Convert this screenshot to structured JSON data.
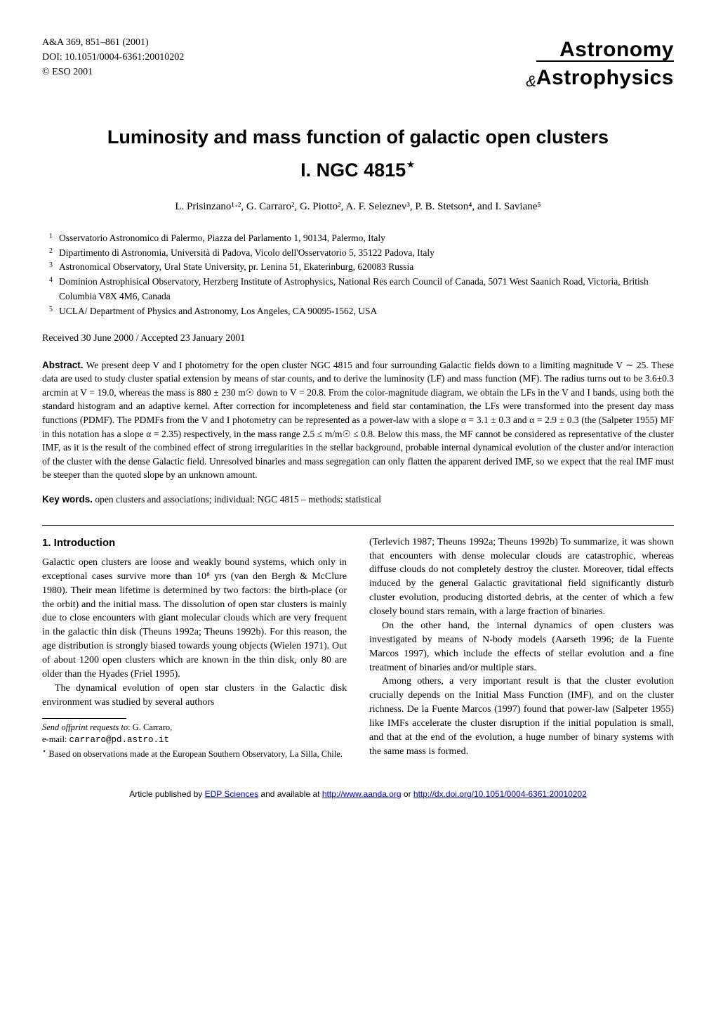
{
  "journal": {
    "citation": "A&A 369, 851–861 (2001)",
    "doi": "DOI: 10.1051/0004-6361:20010202",
    "copyright": "© ESO 2001"
  },
  "logo": {
    "line1": "Astronomy",
    "amp": "&",
    "line2": "Astrophysics"
  },
  "title": {
    "line1": "Luminosity and mass function of galactic open clusters",
    "line2": "I. NGC 4815",
    "star": "⋆"
  },
  "authors": "L. Prisinzano¹·², G. Carraro², G. Piotto², A. F. Seleznev³, P. B. Stetson⁴, and I. Saviane⁵",
  "affiliations": [
    {
      "num": "1",
      "text": "Osservatorio Astronomico di Palermo, Piazza del Parlamento 1, 90134, Palermo, Italy"
    },
    {
      "num": "2",
      "text": "Dipartimento di Astronomia, Università di Padova, Vicolo dell'Osservatorio 5, 35122 Padova, Italy"
    },
    {
      "num": "3",
      "text": "Astronomical Observatory, Ural State University, pr. Lenina 51, Ekaterinburg, 620083 Russia"
    },
    {
      "num": "4",
      "text": "Dominion Astrophisical Observatory, Herzberg Institute of Astrophysics, National Res earch Council of Canada, 5071 West Saanich Road, Victoria, British Columbia V8X 4M6, Canada"
    },
    {
      "num": "5",
      "text": "UCLA/ Department of Physics and Astronomy, Los Angeles, CA 90095-1562, USA"
    }
  ],
  "received": "Received 30 June 2000 / Accepted 23 January 2001",
  "abstract": {
    "label": "Abstract.",
    "text": "We present deep V and I photometry for the open cluster NGC 4815 and four surrounding Galactic fields down to a limiting magnitude V ∼ 25. These data are used to study cluster spatial extension by means of star counts, and to derive the luminosity (LF) and mass function (MF). The radius turns out to be 3.6±0.3 arcmin at V = 19.0, whereas the mass is 880 ± 230 m☉ down to V = 20.8. From the color-magnitude diagram, we obtain the LFs in the V and I bands, using both the standard histogram and an adaptive kernel. After correction for incompleteness and field star contamination, the LFs were transformed into the present day mass functions (PDMF). The PDMFs from the V and I photometry can be represented as a power-law with a slope α = 3.1 ± 0.3 and α = 2.9 ± 0.3 (the (Salpeter 1955) MF in this notation has a slope α = 2.35) respectively, in the mass range 2.5 ≤ m/m☉ ≤ 0.8. Below this mass, the MF cannot be considered as representative of the cluster IMF, as it is the result of the combined effect of strong irregularities in the stellar background, probable internal dynamical evolution of the cluster and/or interaction of the cluster with the dense Galactic field. Unresolved binaries and mass segregation can only flatten the apparent derived IMF, so we expect that the real IMF must be steeper than the quoted slope by an unknown amount."
  },
  "keywords": {
    "label": "Key words.",
    "text": "open clusters and associations; individual: NGC 4815 – methods: statistical"
  },
  "section1": {
    "heading": "1. Introduction",
    "left": {
      "p1": "Galactic open clusters are loose and weakly bound systems, which only in exceptional cases survive more than 10⁸ yrs (van den Bergh & McClure 1980). Their mean lifetime is determined by two factors: the birth-place (or the orbit) and the initial mass. The dissolution of open star clusters is mainly due to close encounters with giant molecular clouds which are very frequent in the galactic thin disk (Theuns 1992a; Theuns 1992b). For this reason, the age distribution is strongly biased towards young objects (Wielen 1971). Out of about 1200 open clusters which are known in the thin disk, only 80 are older than the Hyades (Friel 1995).",
      "p2": "The dynamical evolution of open star clusters in the Galactic disk environment was studied by several authors"
    },
    "right": {
      "p1": "(Terlevich 1987; Theuns 1992a; Theuns 1992b) To summarize, it was shown that encounters with dense molecular clouds are catastrophic, whereas diffuse clouds do not completely destroy the cluster. Moreover, tidal effects induced by the general Galactic gravitational field significantly disturb cluster evolution, producing distorted debris, at the center of which a few closely bound stars remain, with a large fraction of binaries.",
      "p2": "On the other hand, the internal dynamics of open clusters was investigated by means of N-body models (Aarseth 1996; de la Fuente Marcos 1997), which include the effects of stellar evolution and a fine treatment of binaries and/or multiple stars.",
      "p3": "Among others, a very important result is that the cluster evolution crucially depends on the Initial Mass Function (IMF), and on the cluster richness. De la Fuente Marcos (1997) found that power-law (Salpeter 1955) like IMFs accelerate the cluster disruption if the initial population is small, and that at the end of the evolution, a huge number of binary systems with the same mass is formed."
    }
  },
  "footnotes": {
    "send": "Send offprint requests to",
    "send_to": ": G. Carraro,",
    "email_label": "e-mail: ",
    "email": "carraro@pd.astro.it",
    "star": "⋆",
    "star_text": "Based on observations made at the European Southern Observatory, La Silla, Chile."
  },
  "footer": {
    "text_pre": "Article published by ",
    "link1": "EDP Sciences",
    "text_mid": " and available at ",
    "link2": "http://www.aanda.org",
    "text_or": " or ",
    "link3": "http://dx.doi.org/10.1051/0004-6361:20010202"
  },
  "style": {
    "background": "#ffffff",
    "text_color": "#000000",
    "link_color": "#0000cc",
    "title_fontsize": 27,
    "body_fontsize": 14,
    "abstract_fontsize": 13.5,
    "affil_fontsize": 13.5,
    "footnote_fontsize": 12.5,
    "footer_fontsize": 12,
    "heading_font": "Arial, Helvetica, sans-serif",
    "body_font": "Georgia, 'Times New Roman', serif"
  }
}
